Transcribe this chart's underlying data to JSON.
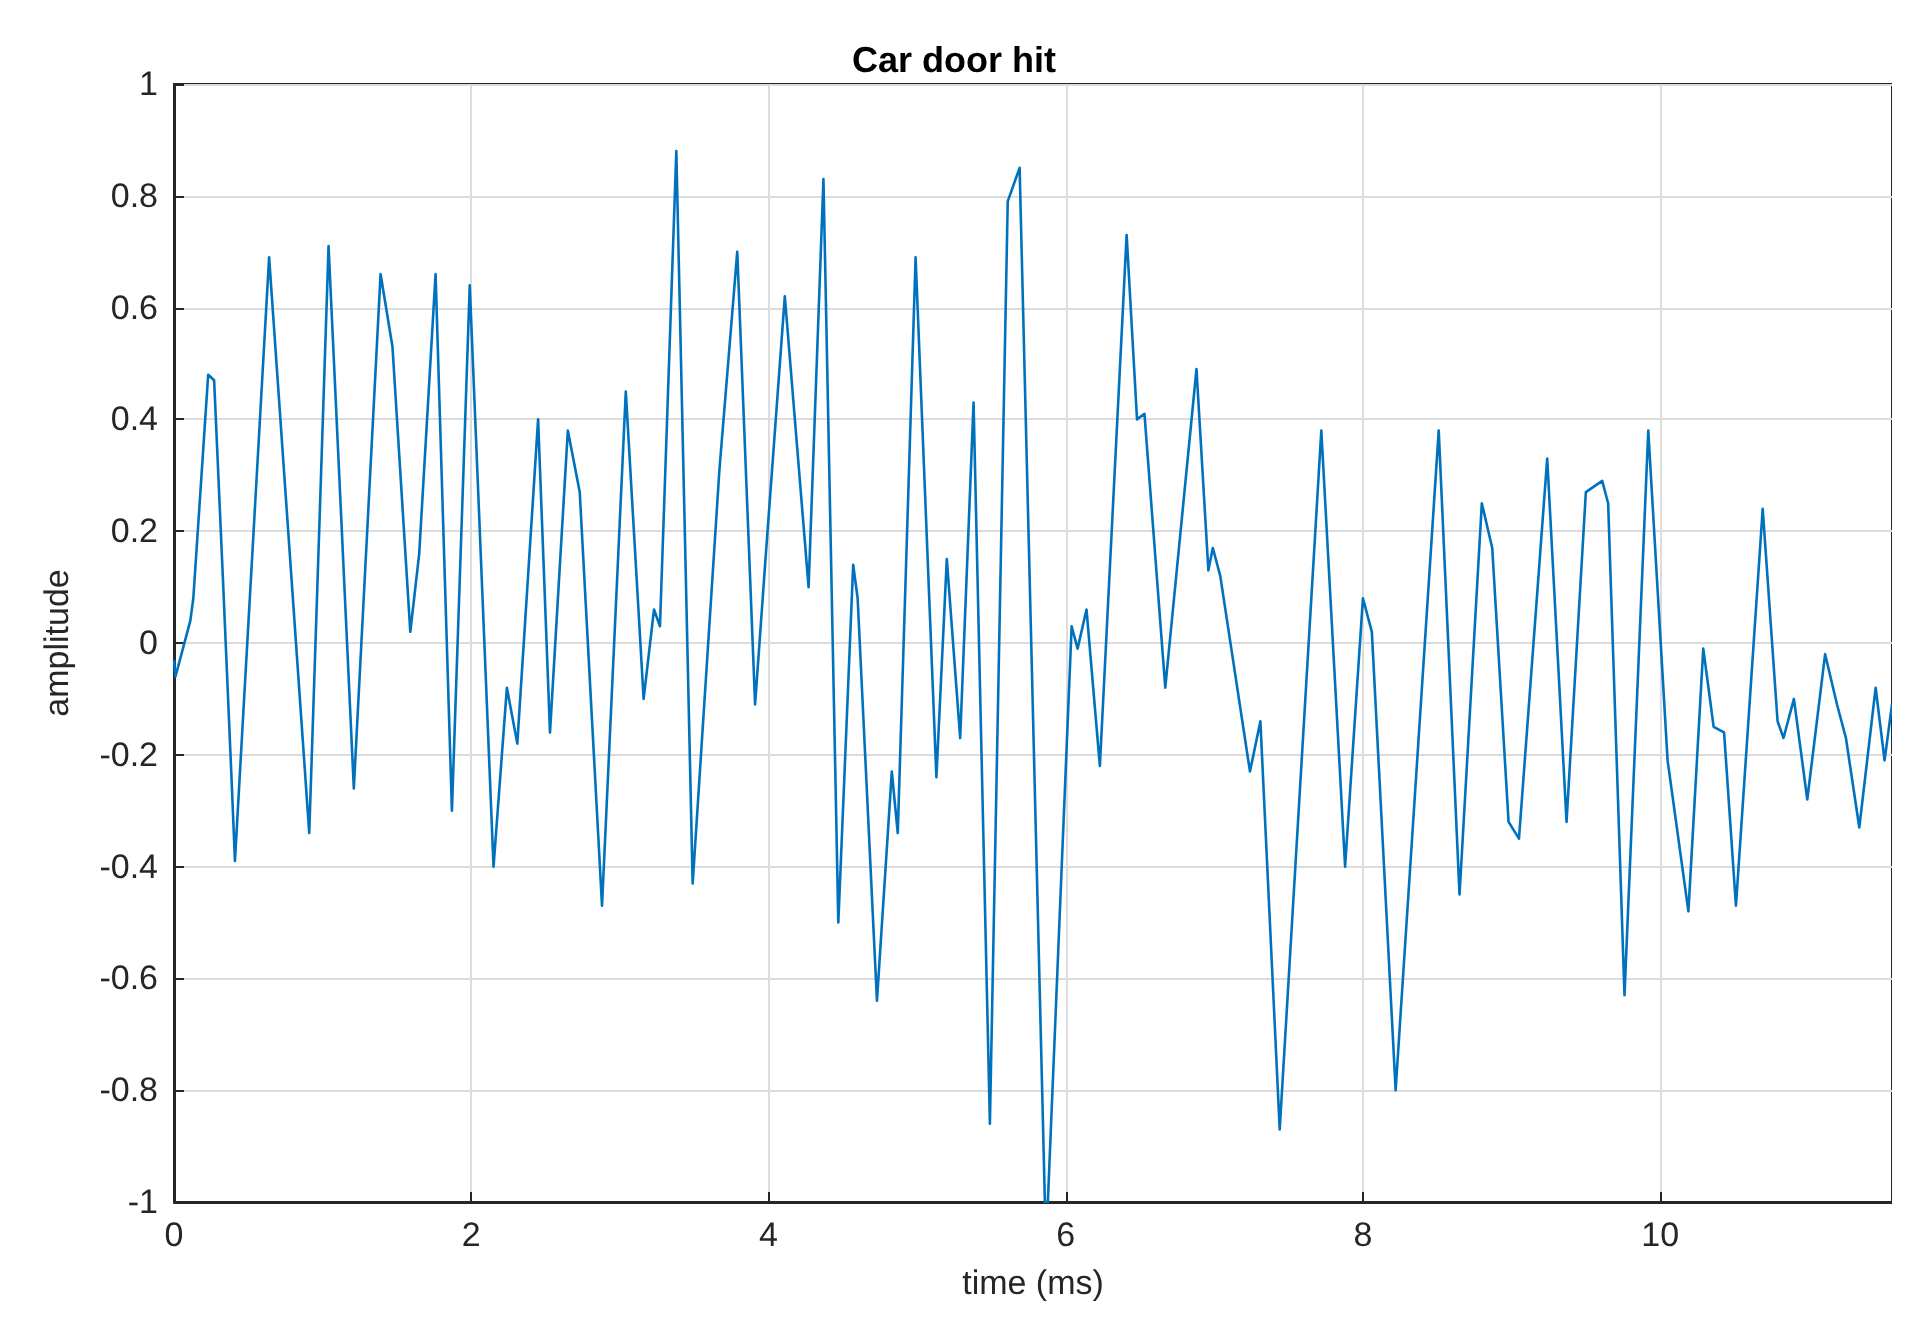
{
  "chart_data": {
    "type": "line",
    "title": "Car door hit",
    "xlabel": "time (ms)",
    "ylabel": "amplitude",
    "xlim": [
      0,
      11.56
    ],
    "xticks": [
      0,
      2,
      4,
      6,
      8,
      10
    ],
    "ylim": [
      -1,
      1
    ],
    "yticks": [
      -1,
      -0.8,
      -0.6,
      -0.4,
      -0.2,
      0,
      0.2,
      0.4,
      0.6,
      0.8,
      1
    ],
    "grid": true,
    "marker": "none",
    "line_style": "solid",
    "series": [
      {
        "color": "#0072bd",
        "x": [
          0,
          0.01,
          0.11,
          0.13,
          0.23,
          0.27,
          0.33,
          0.39,
          0.41,
          0.64,
          0.91,
          1.04,
          1.21,
          1.39,
          1.47,
          1.59,
          1.65,
          1.76,
          1.87,
          1.99,
          2.15,
          2.24,
          2.31,
          2.45,
          2.53,
          2.65,
          2.73,
          2.88,
          3.04,
          3.16,
          3.23,
          3.27,
          3.38,
          3.49,
          3.67,
          3.79,
          3.91,
          3.98,
          4.11,
          4.27,
          4.37,
          4.47,
          4.57,
          4.6,
          4.73,
          4.83,
          4.87,
          4.99,
          5.13,
          5.2,
          5.29,
          5.38,
          5.49,
          5.61,
          5.69,
          5.86,
          5.88,
          6.04,
          6.08,
          6.14,
          6.23,
          6.41,
          6.48,
          6.53,
          6.67,
          6.88,
          6.96,
          6.99,
          7.04,
          7.24,
          7.31,
          7.44,
          7.72,
          7.88,
          8.0,
          8.06,
          8.22,
          8.51,
          8.65,
          8.8,
          8.87,
          8.98,
          9.05,
          9.24,
          9.37,
          9.5,
          9.61,
          9.65,
          9.76,
          9.92,
          10.05,
          10.19,
          10.29,
          10.36,
          10.43,
          10.51,
          10.69,
          10.79,
          10.83,
          10.9,
          10.99,
          11.11,
          11.19,
          11.25,
          11.34,
          11.45,
          11.51,
          11.56
        ],
        "values": [
          -0.03,
          -0.06,
          0.04,
          0.08,
          0.48,
          0.47,
          0.11,
          -0.26,
          -0.39,
          0.69,
          -0.34,
          0.71,
          -0.26,
          0.66,
          0.53,
          0.02,
          0.16,
          0.66,
          -0.3,
          0.64,
          -0.4,
          -0.08,
          -0.18,
          0.4,
          -0.16,
          0.38,
          0.27,
          -0.47,
          0.45,
          -0.1,
          0.06,
          0.03,
          0.88,
          -0.43,
          0.31,
          0.7,
          -0.11,
          0.15,
          0.62,
          0.1,
          0.83,
          -0.5,
          0.14,
          0.08,
          -0.64,
          -0.23,
          -0.34,
          0.69,
          -0.24,
          0.15,
          -0.17,
          0.43,
          -0.86,
          0.79,
          0.85,
          -1,
          -1,
          0.03,
          -0.01,
          0.06,
          -0.22,
          0.73,
          0.4,
          0.41,
          -0.08,
          0.49,
          0.13,
          0.17,
          0.12,
          -0.23,
          -0.14,
          -0.87,
          0.38,
          -0.4,
          0.08,
          0.02,
          -0.8,
          0.38,
          -0.45,
          0.25,
          0.17,
          -0.32,
          -0.35,
          0.33,
          -0.32,
          0.27,
          0.29,
          0.25,
          -0.63,
          0.38,
          -0.21,
          -0.48,
          -0.01,
          -0.15,
          -0.16,
          -0.47,
          0.24,
          -0.14,
          -0.17,
          -0.1,
          -0.28,
          -0.02,
          -0.11,
          -0.17,
          -0.33,
          -0.08,
          -0.21,
          -0.11
        ]
      }
    ]
  }
}
